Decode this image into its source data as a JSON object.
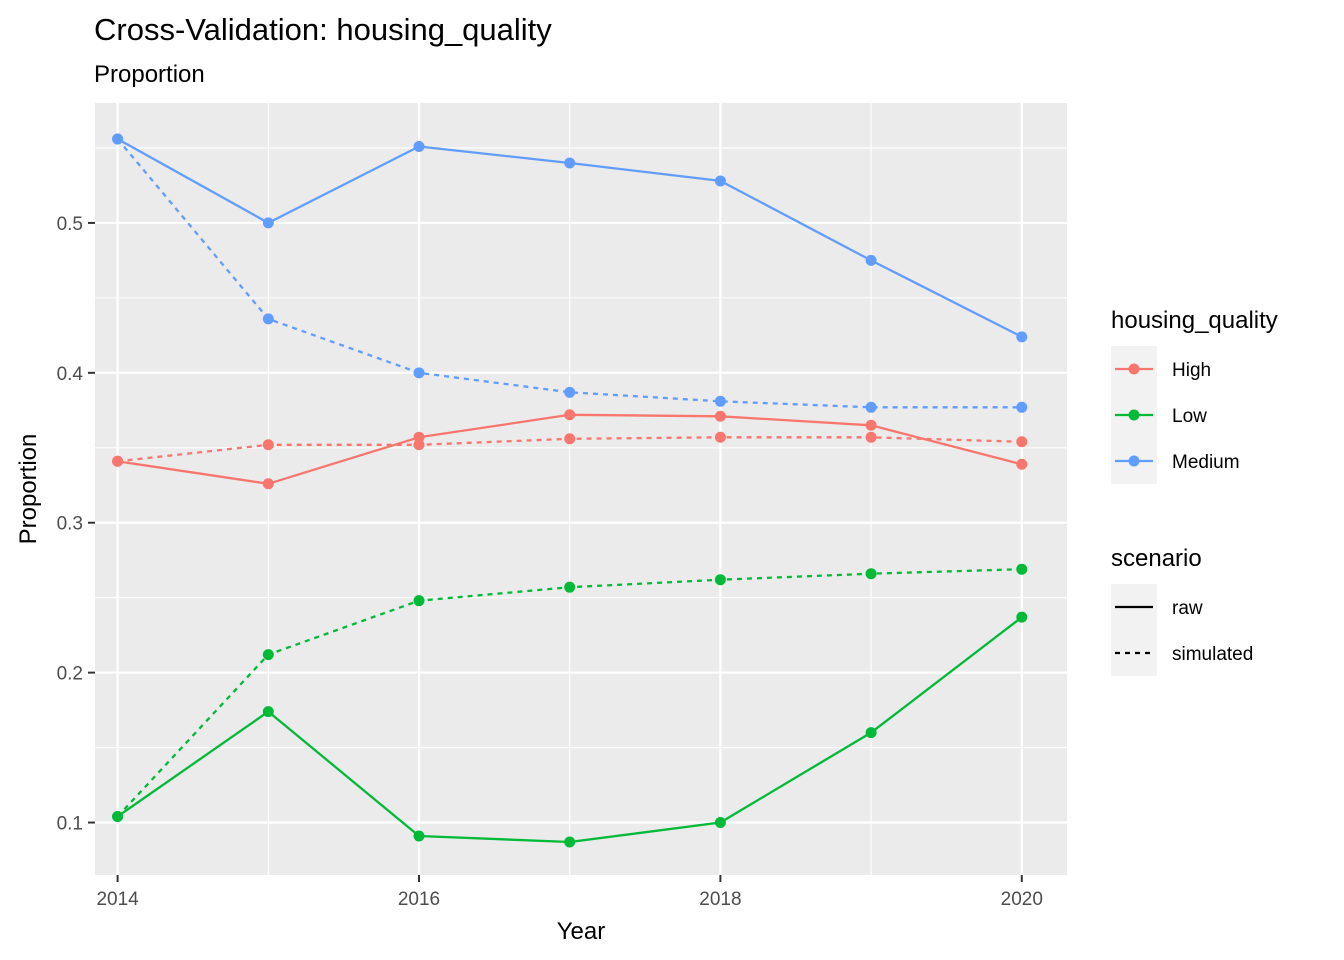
{
  "chart_data": {
    "type": "line",
    "title": "Cross-Validation: housing_quality",
    "subtitle": "Proportion",
    "xlabel": "Year",
    "ylabel": "Proportion",
    "xlim": [
      2013.85,
      2020.3
    ],
    "ylim": [
      0.065,
      0.58
    ],
    "x_ticks": [
      2014,
      2016,
      2018,
      2020
    ],
    "y_ticks": [
      0.1,
      0.2,
      0.3,
      0.4,
      0.5
    ],
    "y_tick_labels": [
      "0.1",
      "0.2",
      "0.3",
      "0.4",
      "0.5"
    ],
    "x": [
      2014,
      2015,
      2016,
      2017,
      2018,
      2019,
      2020
    ],
    "grid": true,
    "legend_position": "right",
    "legends": [
      {
        "title": "housing_quality",
        "items": [
          {
            "label": "High",
            "color": "#F8766D"
          },
          {
            "label": "Low",
            "color": "#00BA38"
          },
          {
            "label": "Medium",
            "color": "#619CFF"
          }
        ]
      },
      {
        "title": "scenario",
        "items": [
          {
            "label": "raw",
            "linetype": "solid"
          },
          {
            "label": "simulated",
            "linetype": "dashed"
          }
        ]
      }
    ],
    "series": [
      {
        "group": "High",
        "scenario": "raw",
        "color": "#F8766D",
        "linetype": "solid",
        "values": [
          0.341,
          0.326,
          0.357,
          0.372,
          0.371,
          0.365,
          0.339
        ]
      },
      {
        "group": "High",
        "scenario": "simulated",
        "color": "#F8766D",
        "linetype": "dashed",
        "values": [
          0.341,
          0.352,
          0.352,
          0.356,
          0.357,
          0.357,
          0.354
        ]
      },
      {
        "group": "Low",
        "scenario": "raw",
        "color": "#00BA38",
        "linetype": "solid",
        "values": [
          0.104,
          0.174,
          0.091,
          0.087,
          0.1,
          0.16,
          0.237
        ]
      },
      {
        "group": "Low",
        "scenario": "simulated",
        "color": "#00BA38",
        "linetype": "dashed",
        "values": [
          0.104,
          0.212,
          0.248,
          0.257,
          0.262,
          0.266,
          0.269
        ]
      },
      {
        "group": "Medium",
        "scenario": "raw",
        "color": "#619CFF",
        "linetype": "solid",
        "values": [
          0.556,
          0.5,
          0.551,
          0.54,
          0.528,
          0.475,
          0.424
        ]
      },
      {
        "group": "Medium",
        "scenario": "simulated",
        "color": "#619CFF",
        "linetype": "dashed",
        "values": [
          0.556,
          0.436,
          0.4,
          0.387,
          0.381,
          0.377,
          0.377
        ]
      }
    ]
  }
}
